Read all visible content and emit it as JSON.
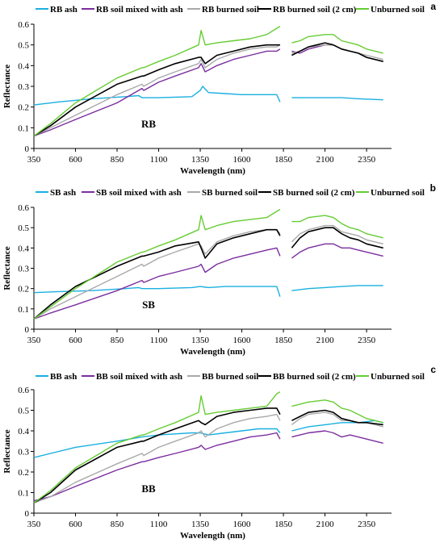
{
  "chart_data": [
    {
      "type": "line",
      "panel_letter": "a",
      "label": "RB",
      "xlabel": "Wavelength (nm)",
      "ylabel": "Reflectance",
      "xlim": [
        350,
        2500
      ],
      "ylim": [
        0,
        0.6
      ],
      "x_ticks": [
        350,
        600,
        850,
        1100,
        1350,
        1600,
        1850,
        2100,
        2350
      ],
      "y_ticks": [
        0,
        0.1,
        0.2,
        0.3,
        0.4,
        0.5,
        0.6
      ],
      "legend_position": "top",
      "gaps": [
        [
          1830,
          1900
        ]
      ],
      "series": [
        {
          "name": "RB ash",
          "color": "#1AAFE0",
          "x": [
            350,
            500,
            700,
            900,
            980,
            1000,
            1100,
            1300,
            1350,
            1365,
            1400,
            1500,
            1600,
            1700,
            1810,
            1830,
            1900,
            2000,
            2100,
            2200,
            2300,
            2450
          ],
          "y": [
            0.21,
            0.225,
            0.24,
            0.25,
            0.255,
            0.245,
            0.245,
            0.25,
            0.28,
            0.3,
            0.27,
            0.265,
            0.26,
            0.26,
            0.26,
            0.225,
            0.245,
            0.245,
            0.245,
            0.245,
            0.24,
            0.235
          ]
        },
        {
          "name": "RB soil mixed with ash",
          "color": "#7B2D9E",
          "x": [
            350,
            450,
            600,
            850,
            1000,
            1010,
            1100,
            1200,
            1340,
            1355,
            1380,
            1450,
            1550,
            1650,
            1750,
            1810,
            1830,
            1900,
            1950,
            2000,
            2100,
            2150,
            2200,
            2250,
            2300,
            2350,
            2450
          ],
          "y": [
            0.06,
            0.09,
            0.14,
            0.22,
            0.29,
            0.28,
            0.32,
            0.35,
            0.39,
            0.41,
            0.37,
            0.4,
            0.43,
            0.45,
            0.47,
            0.47,
            0.48,
            0.47,
            0.46,
            0.48,
            0.5,
            0.5,
            0.48,
            0.47,
            0.46,
            0.44,
            0.42
          ]
        },
        {
          "name": "RB burned soil",
          "color": "#A9A9A9",
          "x": [
            350,
            450,
            600,
            850,
            1000,
            1010,
            1100,
            1200,
            1340,
            1355,
            1380,
            1450,
            1550,
            1650,
            1750,
            1810,
            1830,
            1900,
            1950,
            2000,
            2100,
            2150,
            2200,
            2250,
            2300,
            2350,
            2450
          ],
          "y": [
            0.06,
            0.1,
            0.16,
            0.26,
            0.31,
            0.3,
            0.34,
            0.37,
            0.41,
            0.43,
            0.39,
            0.43,
            0.46,
            0.48,
            0.49,
            0.49,
            0.5,
            0.46,
            0.47,
            0.49,
            0.5,
            0.5,
            0.48,
            0.47,
            0.46,
            0.45,
            0.43
          ]
        },
        {
          "name": "RB burned soil (2 cm)",
          "color": "#000000",
          "x": [
            350,
            450,
            600,
            850,
            1000,
            1010,
            1100,
            1200,
            1340,
            1355,
            1380,
            1450,
            1550,
            1650,
            1750,
            1810,
            1830,
            1900,
            1950,
            2000,
            2100,
            2150,
            2200,
            2250,
            2300,
            2350,
            2450
          ],
          "y": [
            0.06,
            0.11,
            0.2,
            0.31,
            0.35,
            0.35,
            0.38,
            0.41,
            0.44,
            0.44,
            0.41,
            0.45,
            0.47,
            0.49,
            0.5,
            0.5,
            0.5,
            0.45,
            0.47,
            0.49,
            0.51,
            0.5,
            0.48,
            0.47,
            0.46,
            0.44,
            0.42
          ]
        },
        {
          "name": "Unburned soil",
          "color": "#66CC33",
          "x": [
            350,
            450,
            600,
            850,
            1000,
            1010,
            1100,
            1200,
            1340,
            1355,
            1380,
            1450,
            1550,
            1650,
            1750,
            1810,
            1830,
            1900,
            1950,
            2000,
            2100,
            2150,
            2200,
            2250,
            2300,
            2350,
            2450
          ],
          "y": [
            0.06,
            0.12,
            0.22,
            0.34,
            0.39,
            0.39,
            0.42,
            0.45,
            0.5,
            0.57,
            0.5,
            0.51,
            0.52,
            0.53,
            0.55,
            0.58,
            0.59,
            0.51,
            0.52,
            0.54,
            0.55,
            0.55,
            0.52,
            0.51,
            0.5,
            0.48,
            0.46
          ]
        }
      ]
    },
    {
      "type": "line",
      "panel_letter": "b",
      "label": "SB",
      "xlabel": "Wavelength (nm)",
      "ylabel": "Reflectance",
      "xlim": [
        350,
        2500
      ],
      "ylim": [
        0,
        0.6
      ],
      "x_ticks": [
        350,
        600,
        850,
        1100,
        1350,
        1600,
        1850,
        2100,
        2350
      ],
      "y_ticks": [
        0,
        0.1,
        0.2,
        0.3,
        0.4,
        0.5,
        0.6
      ],
      "legend_position": "top",
      "gaps": [
        [
          1830,
          1900
        ]
      ],
      "series": [
        {
          "name": "SB ash",
          "color": "#1AAFE0",
          "x": [
            350,
            500,
            700,
            900,
            980,
            1000,
            1100,
            1300,
            1350,
            1400,
            1500,
            1600,
            1700,
            1810,
            1830,
            1900,
            2000,
            2100,
            2200,
            2300,
            2450
          ],
          "y": [
            0.18,
            0.185,
            0.19,
            0.2,
            0.205,
            0.2,
            0.2,
            0.205,
            0.21,
            0.205,
            0.21,
            0.21,
            0.21,
            0.21,
            0.16,
            0.19,
            0.2,
            0.205,
            0.21,
            0.215,
            0.215
          ]
        },
        {
          "name": "SB soil mixed with ash",
          "color": "#7B2D9E",
          "x": [
            350,
            450,
            600,
            850,
            1000,
            1010,
            1100,
            1200,
            1340,
            1355,
            1380,
            1450,
            1550,
            1650,
            1750,
            1810,
            1830,
            1900,
            1950,
            2000,
            2100,
            2150,
            2200,
            2250,
            2300,
            2350,
            2450
          ],
          "y": [
            0.05,
            0.08,
            0.12,
            0.19,
            0.24,
            0.23,
            0.26,
            0.28,
            0.31,
            0.32,
            0.28,
            0.32,
            0.35,
            0.37,
            0.39,
            0.4,
            0.36,
            0.35,
            0.38,
            0.4,
            0.42,
            0.42,
            0.4,
            0.4,
            0.39,
            0.38,
            0.36
          ]
        },
        {
          "name": "SB burned soil",
          "color": "#A9A9A9",
          "x": [
            350,
            450,
            600,
            850,
            1000,
            1010,
            1100,
            1200,
            1340,
            1355,
            1380,
            1450,
            1550,
            1650,
            1750,
            1810,
            1830,
            1900,
            1950,
            2000,
            2100,
            2150,
            2200,
            2250,
            2300,
            2350,
            2450
          ],
          "y": [
            0.05,
            0.1,
            0.16,
            0.26,
            0.32,
            0.31,
            0.35,
            0.38,
            0.42,
            0.41,
            0.37,
            0.43,
            0.46,
            0.48,
            0.49,
            0.49,
            0.47,
            0.43,
            0.47,
            0.49,
            0.51,
            0.51,
            0.48,
            0.47,
            0.46,
            0.44,
            0.42
          ]
        },
        {
          "name": "SB burned soil (2 cm)",
          "color": "#000000",
          "x": [
            350,
            450,
            600,
            850,
            1000,
            1010,
            1100,
            1200,
            1340,
            1355,
            1380,
            1450,
            1550,
            1650,
            1750,
            1810,
            1830,
            1900,
            1950,
            2000,
            2100,
            2150,
            2200,
            2250,
            2300,
            2350,
            2450
          ],
          "y": [
            0.05,
            0.12,
            0.21,
            0.31,
            0.36,
            0.36,
            0.38,
            0.41,
            0.43,
            0.4,
            0.35,
            0.42,
            0.45,
            0.47,
            0.49,
            0.49,
            0.46,
            0.4,
            0.45,
            0.48,
            0.5,
            0.5,
            0.47,
            0.45,
            0.44,
            0.42,
            0.4
          ]
        },
        {
          "name": "Unburned soil",
          "color": "#66CC33",
          "x": [
            350,
            450,
            600,
            850,
            1000,
            1010,
            1100,
            1200,
            1340,
            1355,
            1380,
            1450,
            1550,
            1650,
            1750,
            1810,
            1830,
            1900,
            1950,
            2000,
            2100,
            2150,
            2200,
            2250,
            2300,
            2350,
            2450
          ],
          "y": [
            0.05,
            0.11,
            0.2,
            0.33,
            0.38,
            0.38,
            0.41,
            0.44,
            0.49,
            0.56,
            0.49,
            0.51,
            0.53,
            0.54,
            0.55,
            0.58,
            0.59,
            0.53,
            0.53,
            0.55,
            0.56,
            0.55,
            0.52,
            0.5,
            0.49,
            0.47,
            0.45
          ]
        }
      ]
    },
    {
      "type": "line",
      "panel_letter": "c",
      "label": "BB",
      "xlabel": "Wavelength (nm)",
      "ylabel": "Reflectance",
      "xlim": [
        350,
        2500
      ],
      "ylim": [
        0,
        0.6
      ],
      "x_ticks": [
        350,
        600,
        850,
        1100,
        1350,
        1600,
        1850,
        2100,
        2350
      ],
      "y_ticks": [
        0,
        0.1,
        0.2,
        0.3,
        0.4,
        0.5,
        0.6
      ],
      "legend_position": "top",
      "gaps": [
        [
          1830,
          1900
        ]
      ],
      "series": [
        {
          "name": "BB ash",
          "color": "#1AAFE0",
          "x": [
            350,
            450,
            600,
            850,
            1000,
            1100,
            1300,
            1350,
            1400,
            1500,
            1600,
            1700,
            1810,
            1830,
            1900,
            2000,
            2100,
            2200,
            2300,
            2400,
            2450
          ],
          "y": [
            0.27,
            0.29,
            0.32,
            0.35,
            0.37,
            0.38,
            0.39,
            0.39,
            0.38,
            0.39,
            0.4,
            0.41,
            0.41,
            0.39,
            0.4,
            0.42,
            0.43,
            0.44,
            0.44,
            0.45,
            0.44
          ]
        },
        {
          "name": "BB soil mixed with ash",
          "color": "#7B2D9E",
          "x": [
            350,
            450,
            600,
            850,
            1000,
            1010,
            1100,
            1200,
            1340,
            1355,
            1380,
            1450,
            1550,
            1650,
            1750,
            1810,
            1830,
            1900,
            1950,
            2000,
            2100,
            2150,
            2200,
            2250,
            2300,
            2350,
            2450
          ],
          "y": [
            0.06,
            0.08,
            0.13,
            0.21,
            0.25,
            0.25,
            0.27,
            0.29,
            0.32,
            0.33,
            0.31,
            0.33,
            0.35,
            0.37,
            0.38,
            0.39,
            0.36,
            0.37,
            0.38,
            0.39,
            0.4,
            0.39,
            0.37,
            0.38,
            0.37,
            0.36,
            0.34
          ]
        },
        {
          "name": "BB burned soil",
          "color": "#A9A9A9",
          "x": [
            350,
            450,
            600,
            850,
            1000,
            1010,
            1100,
            1200,
            1340,
            1355,
            1380,
            1450,
            1550,
            1650,
            1750,
            1810,
            1830,
            1900,
            1950,
            2000,
            2100,
            2150,
            2200,
            2250,
            2300,
            2350,
            2450
          ],
          "y": [
            0.05,
            0.08,
            0.15,
            0.24,
            0.29,
            0.28,
            0.32,
            0.35,
            0.39,
            0.4,
            0.37,
            0.41,
            0.44,
            0.46,
            0.47,
            0.48,
            0.45,
            0.43,
            0.46,
            0.48,
            0.49,
            0.48,
            0.45,
            0.45,
            0.44,
            0.44,
            0.42
          ]
        },
        {
          "name": "BB burned soil (2 cm)",
          "color": "#000000",
          "x": [
            350,
            450,
            600,
            850,
            1000,
            1010,
            1100,
            1200,
            1340,
            1355,
            1380,
            1450,
            1550,
            1650,
            1750,
            1810,
            1830,
            1900,
            1950,
            2000,
            2100,
            2150,
            2200,
            2250,
            2300,
            2350,
            2450
          ],
          "y": [
            0.05,
            0.1,
            0.21,
            0.32,
            0.35,
            0.35,
            0.38,
            0.41,
            0.45,
            0.44,
            0.43,
            0.47,
            0.49,
            0.5,
            0.51,
            0.51,
            0.48,
            0.45,
            0.47,
            0.49,
            0.5,
            0.49,
            0.46,
            0.45,
            0.44,
            0.44,
            0.43
          ]
        },
        {
          "name": "Unburned soil",
          "color": "#66CC33",
          "x": [
            350,
            450,
            600,
            850,
            1000,
            1010,
            1100,
            1200,
            1340,
            1355,
            1380,
            1450,
            1550,
            1650,
            1750,
            1810,
            1830,
            1900,
            1950,
            2000,
            2100,
            2150,
            2200,
            2250,
            2300,
            2350,
            2450
          ],
          "y": [
            0.05,
            0.11,
            0.22,
            0.34,
            0.38,
            0.38,
            0.41,
            0.44,
            0.49,
            0.57,
            0.48,
            0.49,
            0.5,
            0.51,
            0.52,
            0.58,
            0.59,
            0.52,
            0.53,
            0.54,
            0.55,
            0.54,
            0.51,
            0.5,
            0.48,
            0.46,
            0.44
          ]
        }
      ]
    }
  ]
}
